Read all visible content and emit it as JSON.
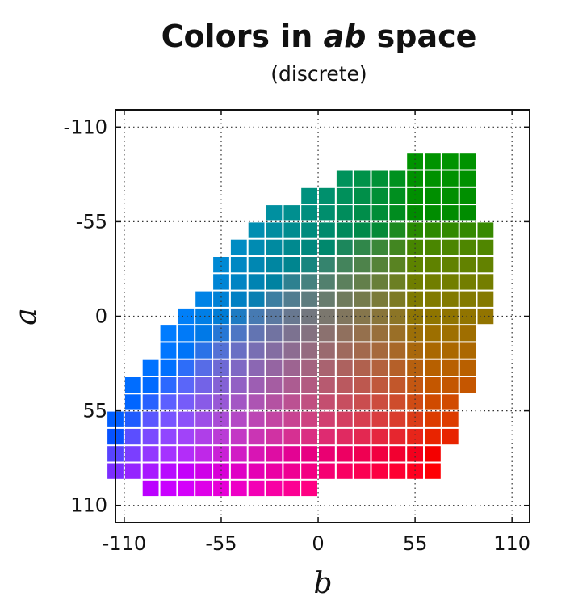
{
  "chart_data": {
    "type": "heatmap",
    "title_main": "Colors in ",
    "title_em": "ab",
    "title_tail": " space",
    "subtitle": "(discrete)",
    "xlabel": "b",
    "ylabel": "a",
    "xlim": [
      -115,
      120
    ],
    "ylim": [
      -120,
      120
    ],
    "y_inverted": true,
    "grid": true,
    "bin_size": 10,
    "xticks": [
      -110,
      -55,
      0,
      55,
      110
    ],
    "xtick_labels": [
      "-110",
      "-55",
      "0",
      "55",
      "110"
    ],
    "yticks": [
      -110,
      -55,
      0,
      55,
      110
    ],
    "ytick_labels": [
      "-110",
      "-55",
      "0",
      "55",
      "110"
    ],
    "rows": [
      {
        "a": -90,
        "b_min": 55,
        "b_max": 90
      },
      {
        "a": -80,
        "b_min": 15,
        "b_max": 90
      },
      {
        "a": -70,
        "b_min": -5,
        "b_max": 90
      },
      {
        "a": -60,
        "b_min": -25,
        "b_max": 90
      },
      {
        "a": -50,
        "b_min": -35,
        "b_max": 100
      },
      {
        "a": -40,
        "b_min": -45,
        "b_max": 100
      },
      {
        "a": -30,
        "b_min": -55,
        "b_max": 100
      },
      {
        "a": -20,
        "b_min": -55,
        "b_max": 100
      },
      {
        "a": -10,
        "b_min": -65,
        "b_max": 100
      },
      {
        "a": 0,
        "b_min": -75,
        "b_max": 100
      },
      {
        "a": 10,
        "b_min": -85,
        "b_max": 90
      },
      {
        "a": 20,
        "b_min": -85,
        "b_max": 90
      },
      {
        "a": 30,
        "b_min": -95,
        "b_max": 90
      },
      {
        "a": 40,
        "b_min": -105,
        "b_max": 90
      },
      {
        "a": 50,
        "b_min": -105,
        "b_max": 80
      },
      {
        "a": 60,
        "b_min": -115,
        "b_max": 80
      },
      {
        "a": 70,
        "b_min": -115,
        "b_max": 80
      },
      {
        "a": 80,
        "b_min": -115,
        "b_max": 70
      },
      {
        "a": 90,
        "b_min": -115,
        "b_max": 70
      },
      {
        "a": 100,
        "b_min": -95,
        "b_max": 0
      }
    ]
  }
}
